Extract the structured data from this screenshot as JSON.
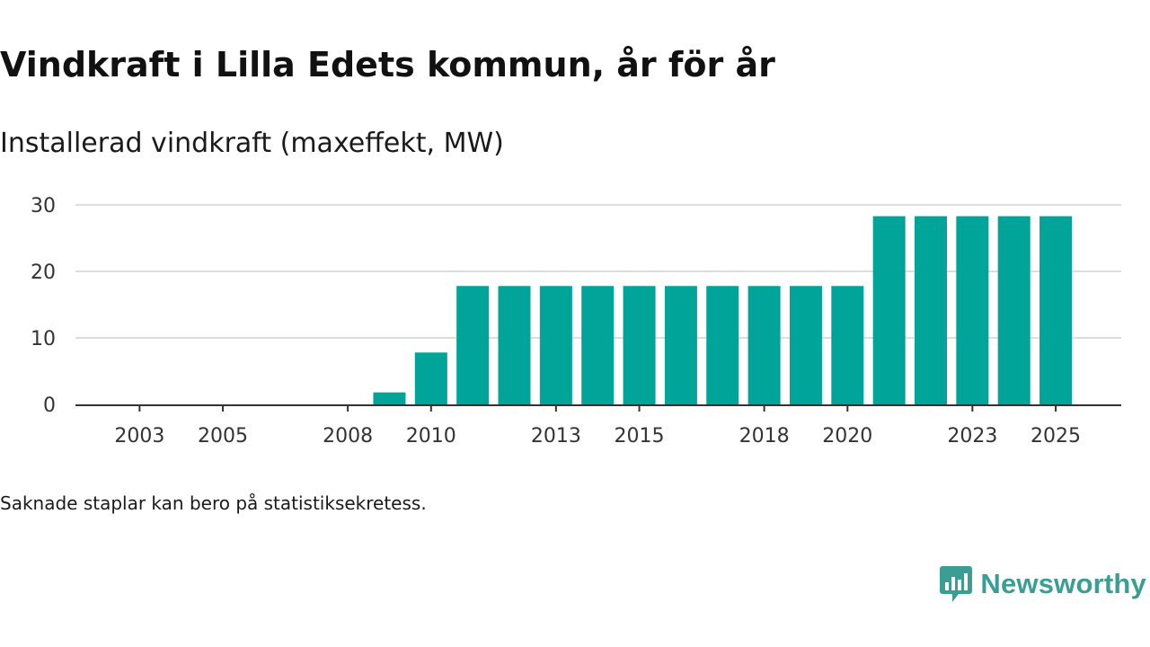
{
  "header": {
    "title": "Vindkraft i Lilla Edets kommun, år för år",
    "subtitle": "Installerad vindkraft (maxeffekt, MW)"
  },
  "footer": {
    "note": "Saknade staplar kan bero på statistiksekretess.",
    "brand": "Newsworthy",
    "brand_icon": "newsworthy-logo-icon"
  },
  "colors": {
    "bar": "#00a499",
    "grid": "#dddddd",
    "axis": "#333333",
    "brand": "#3a9e95"
  },
  "chart_data": {
    "type": "bar",
    "title": "Vindkraft i Lilla Edets kommun, år för år",
    "ylabel": "Installerad vindkraft (maxeffekt, MW)",
    "xlabel": "",
    "ylim": [
      0,
      30
    ],
    "yticks": [
      0,
      10,
      20,
      30
    ],
    "grid": true,
    "categories": [
      "2002",
      "2003",
      "2004",
      "2005",
      "2006",
      "2007",
      "2008",
      "2009",
      "2010",
      "2011",
      "2012",
      "2013",
      "2014",
      "2015",
      "2016",
      "2017",
      "2018",
      "2019",
      "2020",
      "2021",
      "2022",
      "2023",
      "2024",
      "2025"
    ],
    "xtick_labels": [
      "2003",
      "2005",
      "2008",
      "2010",
      "2013",
      "2015",
      "2018",
      "2020",
      "2023",
      "2025"
    ],
    "values": [
      0,
      0,
      0,
      0,
      0,
      0,
      0,
      1.8,
      7.8,
      17.8,
      17.8,
      17.8,
      17.8,
      17.8,
      17.8,
      17.8,
      17.8,
      17.8,
      17.8,
      28.3,
      28.3,
      28.3,
      28.3,
      28.3
    ]
  }
}
